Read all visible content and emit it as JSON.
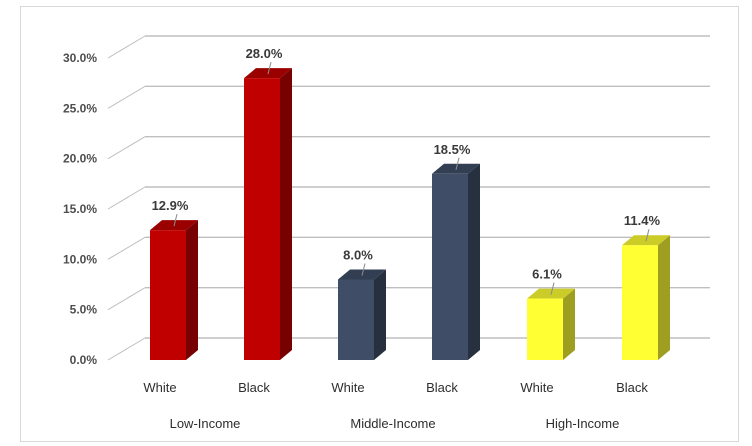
{
  "chart_data": {
    "type": "bar",
    "groups": [
      "Low-Income",
      "Middle-Income",
      "High-Income"
    ],
    "categories": [
      "White",
      "Black",
      "White",
      "Black",
      "White",
      "Black"
    ],
    "values": [
      12.9,
      28.0,
      8.0,
      18.5,
      6.1,
      11.4
    ],
    "data_labels": [
      "12.9%",
      "28.0%",
      "8.0%",
      "18.5%",
      "6.1%",
      "11.4%"
    ],
    "ylim": [
      0,
      30
    ],
    "y_ticks": [
      "0.0%",
      "5.0%",
      "10.0%",
      "15.0%",
      "20.0%",
      "25.0%",
      "30.0%"
    ],
    "grid": true,
    "colors": {
      "Low-Income": "#c00000",
      "Middle-Income": "#3f4e66",
      "High-Income": "#ffff33"
    }
  }
}
